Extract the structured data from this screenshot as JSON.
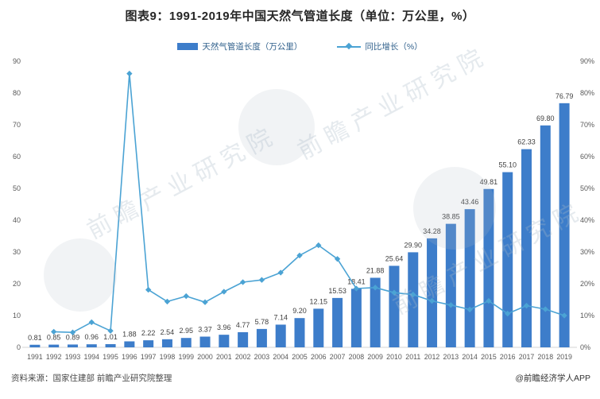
{
  "title": "图表9：1991-2019年中国天然气管道长度（单位：万公里，%）",
  "legend": {
    "bar_label": "天然气管道长度（万公里）",
    "line_label": "同比增长（%）"
  },
  "footer": {
    "source": "资料来源：国家住建部 前瞻产业研究院整理",
    "credit": "@前瞻经济学人APP"
  },
  "watermark": {
    "text": "前瞻产业研究院"
  },
  "colors": {
    "bar": "#3d7dca",
    "line": "#4ba3d4",
    "axis_line": "#d6d6d6",
    "bar_label": "#404040",
    "tick_label": "#595959"
  },
  "chart_data": {
    "type": "combo",
    "title": "图表9：1991-2019年中国天然气管道长度（单位：万公里，%）",
    "categories": [
      "1991",
      "1992",
      "1993",
      "1994",
      "1995",
      "1996",
      "1997",
      "1998",
      "1999",
      "2000",
      "2001",
      "2002",
      "2003",
      "2004",
      "2005",
      "2006",
      "2007",
      "2008",
      "2009",
      "2010",
      "2011",
      "2012",
      "2013",
      "2014",
      "2015",
      "2016",
      "2017",
      "2018",
      "2019"
    ],
    "series": [
      {
        "name": "天然气管道长度（万公里）",
        "type": "bar",
        "axis": "left",
        "values": [
          0.81,
          0.85,
          0.89,
          0.96,
          1.01,
          1.88,
          2.22,
          2.54,
          2.95,
          3.37,
          3.96,
          4.77,
          5.78,
          7.14,
          9.2,
          12.15,
          15.53,
          18.41,
          21.88,
          25.64,
          29.9,
          34.28,
          38.85,
          43.46,
          49.81,
          55.1,
          62.33,
          69.8,
          76.79
        ],
        "data_labels": true,
        "label_decimals": 2
      },
      {
        "name": "同比增长（%）",
        "type": "line",
        "axis": "right",
        "values": [
          null,
          4.9,
          4.7,
          7.9,
          5.2,
          86.1,
          18.1,
          14.4,
          16.1,
          14.2,
          17.5,
          20.5,
          21.2,
          23.5,
          28.9,
          32.1,
          27.8,
          18.5,
          18.8,
          17.2,
          16.6,
          14.6,
          13.3,
          11.9,
          14.6,
          10.6,
          13.1,
          12.0,
          10.0
        ],
        "data_labels": false
      }
    ],
    "left_axis": {
      "min": 0,
      "max": 90,
      "step": 10,
      "suffix": ""
    },
    "right_axis": {
      "min": 0,
      "max": 90,
      "step": 10,
      "suffix": "%"
    },
    "grid": false,
    "legend_position": "top"
  }
}
